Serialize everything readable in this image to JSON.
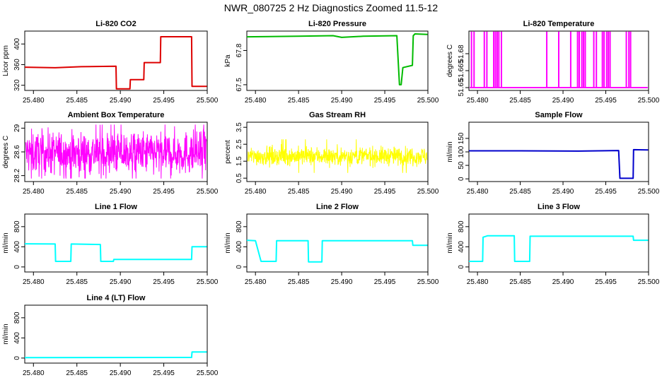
{
  "figure_title": "NWR_080725  2 Hz Diagnostics Zoomed 11.5-12",
  "chart_data": [
    {
      "type": "line",
      "title": "Li-820 CO2",
      "xlabel": "",
      "ylabel": "Licor ppm",
      "color": "#dd0000",
      "xlim": [
        25.479,
        25.5
      ],
      "ylim": [
        310,
        425
      ],
      "xticks": [
        "25.480",
        "25.485",
        "25.490",
        "25.495",
        "25.500"
      ],
      "yticks": [
        320,
        360,
        400
      ],
      "series": [
        {
          "name": "Li-820 CO2",
          "points": [
            [
              25.479,
              355
            ],
            [
              25.4825,
              354
            ],
            [
              25.4855,
              356
            ],
            [
              25.4895,
              357
            ],
            [
              25.48955,
              313
            ],
            [
              25.4911,
              313
            ],
            [
              25.49115,
              331
            ],
            [
              25.4927,
              331
            ],
            [
              25.49275,
              364
            ],
            [
              25.4946,
              364
            ],
            [
              25.49465,
              414
            ],
            [
              25.4982,
              414
            ],
            [
              25.49825,
              318
            ],
            [
              25.49995,
              318
            ]
          ]
        }
      ]
    },
    {
      "type": "line",
      "title": "Li-820 Pressure",
      "xlabel": "",
      "ylabel": "kPa",
      "color": "#00bb00",
      "xlim": [
        25.479,
        25.5
      ],
      "ylim": [
        67.45,
        67.97
      ],
      "xticks": [
        "25.480",
        "25.485",
        "25.490",
        "25.495",
        "25.500"
      ],
      "yticks": [
        67.5,
        67.8
      ],
      "series": [
        {
          "name": "Li-820 Pressure",
          "points": [
            [
              25.479,
              67.92
            ],
            [
              25.485,
              67.925
            ],
            [
              25.489,
              67.93
            ],
            [
              25.49,
              67.915
            ],
            [
              25.4925,
              67.925
            ],
            [
              25.4964,
              67.93
            ],
            [
              25.4967,
              67.5
            ],
            [
              25.4969,
              67.5
            ],
            [
              25.4971,
              67.65
            ],
            [
              25.4982,
              67.67
            ],
            [
              25.4983,
              67.93
            ],
            [
              25.4985,
              67.945
            ],
            [
              25.49995,
              67.94
            ]
          ]
        }
      ]
    },
    {
      "type": "line",
      "title": "Li-820 Temperature",
      "xlabel": "",
      "ylabel": "degrees C",
      "color": "#ff00ff",
      "xlim": [
        25.479,
        25.5
      ],
      "ylim": [
        51.6475,
        51.7
      ],
      "xticks": [
        "25.480",
        "25.485",
        "25.490",
        "25.495",
        "25.500"
      ],
      "yticks": [
        51.65,
        51.665,
        51.68
      ],
      "base": 51.65,
      "spike_top": 51.6995,
      "spike_times": [
        25.4793,
        25.4796,
        25.4808,
        25.4811,
        25.4819,
        25.4821,
        25.4823,
        25.4825,
        25.4828,
        25.4881,
        25.4895,
        25.4909,
        25.4917,
        25.4919,
        25.4922,
        25.4924,
        25.4926,
        25.4936,
        25.4939,
        25.4946,
        25.4948,
        25.4951,
        25.4953,
        25.4955,
        25.4974,
        25.4977,
        25.4979
      ]
    },
    {
      "type": "line",
      "title": "Ambient Box Temperature",
      "xlabel": "",
      "ylabel": "degrees C",
      "color": "#ff00ff",
      "xlim": [
        25.479,
        25.5
      ],
      "ylim": [
        28.1,
        29.1
      ],
      "xticks": [
        "25.480",
        "25.485",
        "25.490",
        "25.495",
        "25.500"
      ],
      "yticks": [
        28.2,
        28.6,
        29.0
      ],
      "noise": {
        "center": 28.58,
        "spread": 0.3,
        "min": 28.15,
        "max": 29.06,
        "n": 700
      }
    },
    {
      "type": "line",
      "title": "Gas Stream RH",
      "xlabel": "",
      "ylabel": "percent",
      "color": "#ffff00",
      "xlim": [
        25.479,
        25.5
      ],
      "ylim": [
        0.3,
        3.8
      ],
      "xticks": [
        "25.480",
        "25.485",
        "25.490",
        "25.495",
        "25.500"
      ],
      "yticks": [
        0.5,
        1.5,
        2.5,
        3.5
      ],
      "noise": {
        "center": 1.8,
        "spread": 0.45,
        "min": 0.5,
        "max": 3.6,
        "n": 700
      }
    },
    {
      "type": "line",
      "title": "Sample Flow",
      "xlabel": "",
      "ylabel": "ml/min",
      "color": "#0000cc",
      "xlim": [
        25.479,
        25.5
      ],
      "ylim": [
        -10,
        210
      ],
      "xticks": [
        "25.480",
        "25.485",
        "25.490",
        "25.495",
        "25.500"
      ],
      "yticks": [
        0,
        50,
        100,
        150
      ],
      "series": [
        {
          "name": "Sample Flow",
          "points": [
            [
              25.479,
              104
            ],
            [
              25.485,
              104
            ],
            [
              25.4918,
              103
            ],
            [
              25.4965,
              105
            ],
            [
              25.49665,
              2
            ],
            [
              25.4982,
              2
            ],
            [
              25.49825,
              108
            ],
            [
              25.49995,
              107
            ]
          ]
        }
      ]
    },
    {
      "type": "line",
      "title": "Line 1 Flow",
      "xlabel": "",
      "ylabel": "ml/min",
      "color": "#00ffff",
      "xlim": [
        25.479,
        25.5
      ],
      "ylim": [
        -100,
        1050
      ],
      "xticks": [
        "25.480",
        "25.485",
        "25.490",
        "25.495",
        "25.500"
      ],
      "yticks": [
        0,
        400,
        800
      ],
      "series": [
        {
          "name": "Line 1 Flow",
          "points": [
            [
              25.479,
              460
            ],
            [
              25.4825,
              455
            ],
            [
              25.48255,
              110
            ],
            [
              25.4843,
              110
            ],
            [
              25.48435,
              455
            ],
            [
              25.4877,
              445
            ],
            [
              25.48775,
              110
            ],
            [
              25.4892,
              110
            ],
            [
              25.48925,
              150
            ],
            [
              25.4982,
              150
            ],
            [
              25.49825,
              400
            ],
            [
              25.49995,
              400
            ]
          ]
        }
      ]
    },
    {
      "type": "line",
      "title": "Line 2 Flow",
      "xlabel": "",
      "ylabel": "ml/min",
      "color": "#00ffff",
      "xlim": [
        25.479,
        25.5
      ],
      "ylim": [
        -100,
        1050
      ],
      "xticks": [
        "25.480",
        "25.485",
        "25.490",
        "25.495",
        "25.500"
      ],
      "yticks": [
        0,
        400,
        800
      ],
      "series": [
        {
          "name": "Line 2 Flow",
          "points": [
            [
              25.479,
              530
            ],
            [
              25.48,
              520
            ],
            [
              25.48065,
              110
            ],
            [
              25.4824,
              110
            ],
            [
              25.48245,
              520
            ],
            [
              25.4861,
              520
            ],
            [
              25.48615,
              100
            ],
            [
              25.4877,
              100
            ],
            [
              25.48775,
              520
            ],
            [
              25.4982,
              520
            ],
            [
              25.49825,
              430
            ],
            [
              25.49995,
              430
            ]
          ]
        }
      ]
    },
    {
      "type": "line",
      "title": "Line 3 Flow",
      "xlabel": "",
      "ylabel": "ml/min",
      "color": "#00ffff",
      "xlim": [
        25.479,
        25.5
      ],
      "ylim": [
        -100,
        1050
      ],
      "xticks": [
        "25.480",
        "25.485",
        "25.490",
        "25.495",
        "25.500"
      ],
      "yticks": [
        0,
        400,
        800
      ],
      "series": [
        {
          "name": "Line 3 Flow",
          "points": [
            [
              25.479,
              110
            ],
            [
              25.4806,
              110
            ],
            [
              25.48065,
              590
            ],
            [
              25.4812,
              620
            ],
            [
              25.4843,
              620
            ],
            [
              25.48435,
              110
            ],
            [
              25.4861,
              110
            ],
            [
              25.48615,
              610
            ],
            [
              25.4982,
              610
            ],
            [
              25.49825,
              530
            ],
            [
              25.49995,
              530
            ]
          ]
        }
      ]
    },
    {
      "type": "line",
      "title": "Line 4 (LT) Flow",
      "xlabel": "",
      "ylabel": "ml/min",
      "color": "#00ffff",
      "xlim": [
        25.479,
        25.5
      ],
      "ylim": [
        -100,
        1050
      ],
      "xticks": [
        "25.480",
        "25.485",
        "25.490",
        "25.495",
        "25.500"
      ],
      "yticks": [
        0,
        400,
        800
      ],
      "series": [
        {
          "name": "Line 4 (LT) Flow",
          "points": [
            [
              25.479,
              10
            ],
            [
              25.4982,
              12
            ],
            [
              25.49825,
              120
            ],
            [
              25.49995,
              120
            ]
          ]
        }
      ]
    }
  ]
}
